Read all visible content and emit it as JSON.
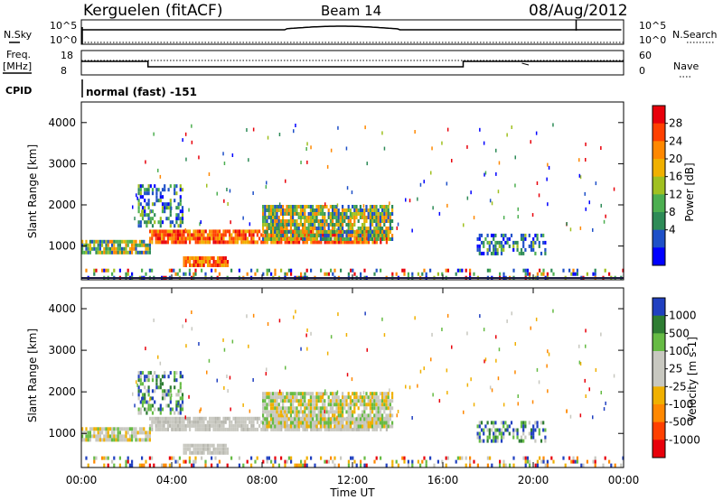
{
  "header": {
    "station": "Kerguelen (fitACF)",
    "beam": "Beam 14",
    "date": "08/Aug/2012"
  },
  "strips": {
    "nsky_label": "N.Sky",
    "nsearch_label": "N.Search",
    "noise_ticks": [
      "10^5",
      "10^0"
    ],
    "freq_label_1": "Freq.",
    "freq_label_2": "[MHz]",
    "freq_ticks": [
      "18",
      "8"
    ],
    "nave_label": "Nave",
    "nave_ticks": [
      "60",
      "0"
    ],
    "cpid_label": "CPID",
    "cpid_text": "normal (fast) -151"
  },
  "chart_data": [
    {
      "type": "heatmap",
      "panel": "power",
      "ylabel": "Slant Range [km]",
      "colorbar_label": "Power [dB]",
      "colorbar_ticks": [
        "28",
        "24",
        "20",
        "16",
        "12",
        "8",
        "4"
      ],
      "colorbar_colors": [
        "#e8000b",
        "#ff4000",
        "#ff8800",
        "#f0b000",
        "#a0c020",
        "#4caf50",
        "#2e8b57",
        "#1e50c8",
        "#0000ff"
      ],
      "ylim": [
        180,
        4500
      ],
      "yticks": [
        "1000",
        "2000",
        "3000",
        "4000"
      ],
      "regions": [
        {
          "t0": 3.0,
          "t1": 13.6,
          "r0": 1050,
          "r1": 1400,
          "level": "high"
        },
        {
          "t0": 8.0,
          "t1": 13.8,
          "r0": 1200,
          "r1": 2000,
          "level": "mid"
        },
        {
          "t0": 2.5,
          "t1": 4.5,
          "r0": 1500,
          "r1": 2500,
          "level": "low"
        },
        {
          "t0": 0.0,
          "t1": 3.0,
          "r0": 800,
          "r1": 1150,
          "level": "mid"
        },
        {
          "t0": 4.5,
          "t1": 6.5,
          "r0": 500,
          "r1": 750,
          "level": "high"
        },
        {
          "t0": 0.0,
          "t1": 24.0,
          "r0": 200,
          "r1": 450,
          "level": "scatter"
        },
        {
          "t0": 17.5,
          "t1": 20.5,
          "r0": 850,
          "r1": 1300,
          "level": "low"
        }
      ]
    },
    {
      "type": "heatmap",
      "panel": "velocity",
      "ylabel": "Slant Range [km]",
      "colorbar_label": "Velocity [m s-1]",
      "colorbar_ticks": [
        "1000",
        "500",
        "100",
        "25",
        "-25",
        "-100",
        "-500",
        "-1000"
      ],
      "colorbar_colors": [
        "#2040c0",
        "#2e7d32",
        "#66bb44",
        "#c8c8c0",
        "#c8c8c0",
        "#f0b000",
        "#ff8800",
        "#ff4000",
        "#e8000b"
      ],
      "ylim": [
        180,
        4500
      ],
      "yticks": [
        "1000",
        "2000",
        "3000",
        "4000"
      ],
      "xticks": [
        "00:00",
        "04:00",
        "08:00",
        "12:00",
        "16:00",
        "20:00",
        "00:00"
      ],
      "xlabel": "Time UT"
    }
  ]
}
